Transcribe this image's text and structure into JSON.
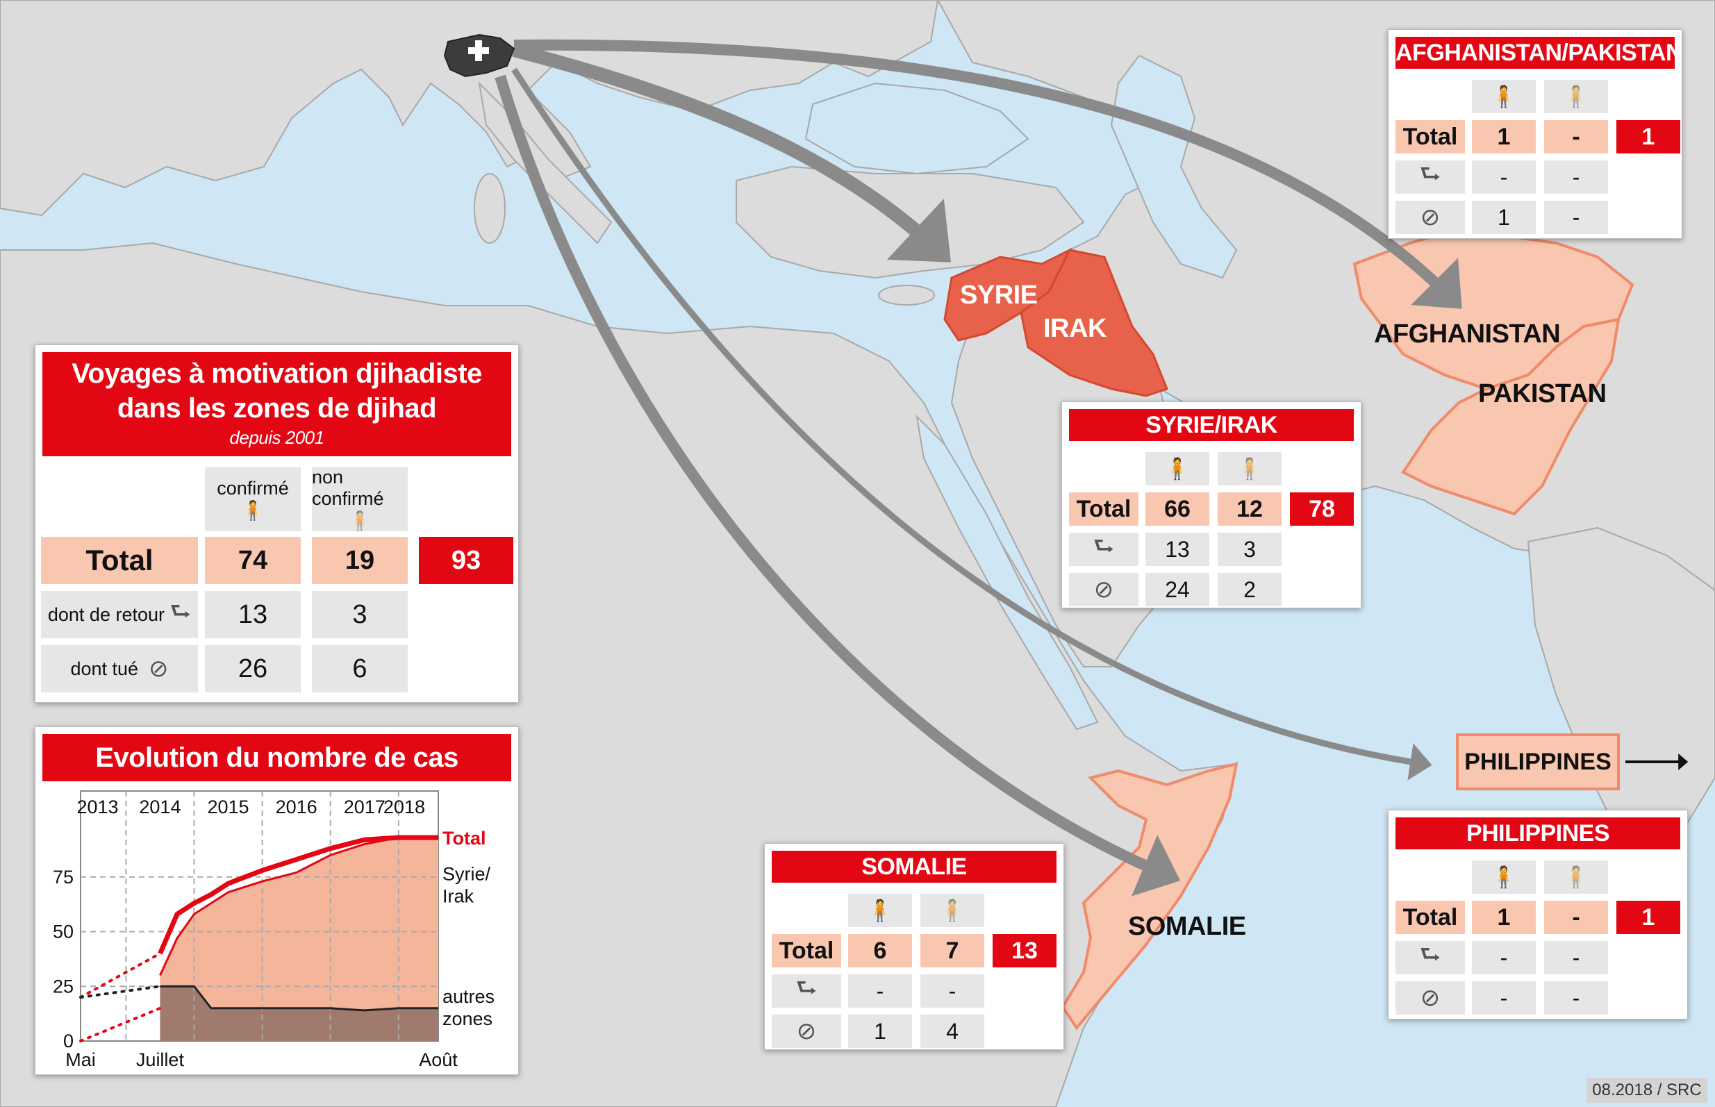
{
  "map_labels": {
    "syrie": "SYRIE",
    "irak": "IRAK",
    "afghanistan": "AFGHANISTAN",
    "pakistan": "PAKISTAN",
    "somalie": "SOMALIE",
    "philippines": "PHILIPPINES"
  },
  "main_table": {
    "title_line1": "Voyages à motivation djihadiste",
    "title_line2": "dans les zones de djihad",
    "subtitle": "depuis 2001",
    "col_confirmed": "confirmé",
    "col_unconfirmed": "non confirmé",
    "row_total_label": "Total",
    "row_return_label": "dont de retour",
    "row_killed_label": "dont tué",
    "total_confirmed": "74",
    "total_unconfirmed": "19",
    "total_all": "93",
    "return_confirmed": "13",
    "return_unconfirmed": "3",
    "killed_confirmed": "26",
    "killed_unconfirmed": "6"
  },
  "regions": {
    "afpak": {
      "title": "AFGHANISTAN/PAKISTAN",
      "total_label": "Total",
      "total_confirmed": "1",
      "total_unconfirmed": "-",
      "total_all": "1",
      "return_confirmed": "-",
      "return_unconfirmed": "-",
      "killed_confirmed": "1",
      "killed_unconfirmed": "-"
    },
    "syrie_irak": {
      "title": "SYRIE/IRAK",
      "total_label": "Total",
      "total_confirmed": "66",
      "total_unconfirmed": "12",
      "total_all": "78",
      "return_confirmed": "13",
      "return_unconfirmed": "3",
      "killed_confirmed": "24",
      "killed_unconfirmed": "2"
    },
    "somalie": {
      "title": "SOMALIE",
      "total_label": "Total",
      "total_confirmed": "6",
      "total_unconfirmed": "7",
      "total_all": "13",
      "return_confirmed": "-",
      "return_unconfirmed": "-",
      "killed_confirmed": "1",
      "killed_unconfirmed": "4"
    },
    "philippines": {
      "title": "PHILIPPINES",
      "total_label": "Total",
      "total_confirmed": "1",
      "total_unconfirmed": "-",
      "total_all": "1",
      "return_confirmed": "-",
      "return_unconfirmed": "-",
      "killed_confirmed": "-",
      "killed_unconfirmed": "-"
    }
  },
  "chart": {
    "title": "Evolution du nombre de cas",
    "year_labels": [
      "2013",
      "2014",
      "2015",
      "2016",
      "2017",
      "2018"
    ],
    "y_ticks": [
      "75",
      "50",
      "25",
      "0"
    ],
    "x_start_line1": "Mai",
    "x_start_line2": "2013",
    "x_mid_line1": "Juillet",
    "x_mid_line2": "2014",
    "x_end_line1": "Août",
    "x_end_line2": "2018",
    "legend_total": "Total",
    "legend_syrie_line1": "Syrie/",
    "legend_syrie_line2": "Irak",
    "legend_autres_line1": "autres",
    "legend_autres_line2": "zones"
  },
  "chart_data": {
    "type": "area",
    "xlabel": "",
    "ylabel": "",
    "ylim": [
      0,
      100
    ],
    "series": [
      {
        "name": "Total",
        "x": [
          "2013-05",
          "2014-07",
          "2014-10",
          "2015-01",
          "2015-04",
          "2015-07",
          "2016-01",
          "2016-07",
          "2017-01",
          "2017-07",
          "2018-01",
          "2018-08"
        ],
        "y": [
          20,
          40,
          58,
          63,
          67,
          72,
          78,
          83,
          88,
          92,
          93,
          93
        ]
      },
      {
        "name": "Syrie/Irak",
        "x": [
          "2013-05",
          "2014-07",
          "2014-10",
          "2015-01",
          "2015-07",
          "2016-01",
          "2016-07",
          "2017-01",
          "2017-07",
          "2018-01",
          "2018-08"
        ],
        "y": [
          0,
          15,
          32,
          43,
          53,
          58,
          62,
          70,
          75,
          78,
          78
        ]
      },
      {
        "name": "autres zones",
        "x": [
          "2013-05",
          "2014-07",
          "2015-01",
          "2015-04",
          "2016-01",
          "2017-01",
          "2017-07",
          "2018-01",
          "2018-08"
        ],
        "y": [
          20,
          25,
          25,
          15,
          15,
          15,
          14,
          15,
          15
        ]
      }
    ]
  },
  "source": "08.2018 / SRC",
  "colors": {
    "red": "#e30613",
    "pink": "#f9c7b0",
    "syria_iraq": "#e8614a",
    "arrow": "#8a8a8a"
  }
}
